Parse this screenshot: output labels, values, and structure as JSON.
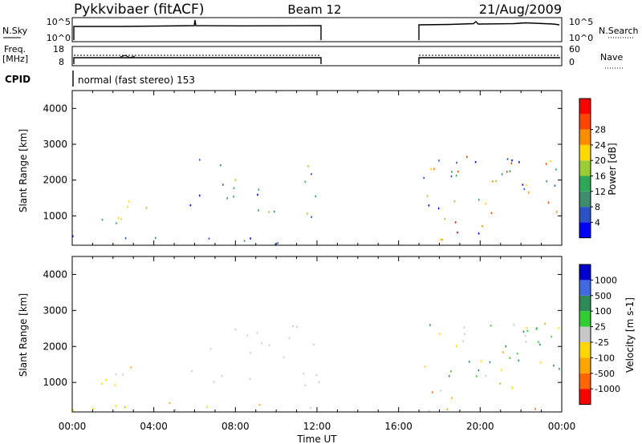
{
  "header": {
    "station": "Pykkvibaer (fitACF)",
    "beam": "Beam 12",
    "date": "21/Aug/2009"
  },
  "aux": {
    "nsky_label": "N.Sky",
    "nsky_ticks": [
      "10^5",
      "10^0"
    ],
    "nsearch_label": "N.Search",
    "nsearch_ticks": [
      "10^5",
      "10^0"
    ],
    "freq_label_1": "Freq.",
    "freq_label_2": "[MHz]",
    "freq_ticks": [
      "18",
      "8"
    ],
    "nave_label": "Nave",
    "nave_ticks": [
      "60",
      "0"
    ],
    "cpid_label": "CPID",
    "cpid_text": "normal (fast stereo) 153"
  },
  "colors": {
    "power": [
      "#0000ff",
      "#2a52c4",
      "#3d8c6e",
      "#2ea858",
      "#9acd32",
      "#ffd700",
      "#ff8c00",
      "#ff4500",
      "#ff0000"
    ],
    "velocity": [
      "#0000cd",
      "#4169e1",
      "#2e8b57",
      "#32cd32",
      "#c8c8c8",
      "#ffd700",
      "#ffa500",
      "#ff6600",
      "#ff0000"
    ]
  },
  "chart_data": [
    {
      "type": "heatmap",
      "panel": "power",
      "ylabel": "Slant Range [km]",
      "ylim": [
        180,
        4500
      ],
      "yticks": [
        1000,
        2000,
        3000,
        4000
      ],
      "xlim_hours": [
        0,
        24
      ],
      "data_gap_hours": [
        12.33,
        17.17
      ],
      "colorbar": {
        "label": "Power [dB]",
        "ticks": [
          4,
          8,
          12,
          16,
          20,
          24,
          28
        ],
        "range": [
          0,
          32
        ]
      }
    },
    {
      "type": "heatmap",
      "panel": "velocity",
      "ylabel": "Slant Range [km]",
      "ylim": [
        180,
        4500
      ],
      "yticks": [
        1000,
        2000,
        3000,
        4000
      ],
      "xlim_hours": [
        0,
        24
      ],
      "data_gap_hours": [
        12.33,
        17.17
      ],
      "colorbar": {
        "label": "Velocity [m s-1]",
        "ticks": [
          "1000",
          "500",
          "100",
          "25",
          "-25",
          "-100",
          "-500",
          "-1000"
        ]
      }
    }
  ],
  "time_axis": {
    "label": "Time UT",
    "ticks": [
      "00:00",
      "04:00",
      "08:00",
      "12:00",
      "16:00",
      "20:00",
      "00:00"
    ]
  }
}
